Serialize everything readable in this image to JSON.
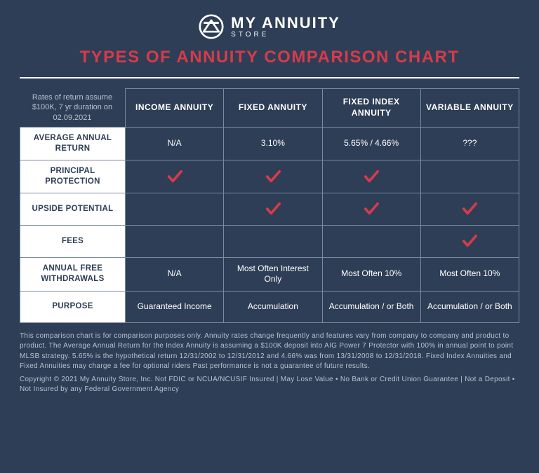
{
  "brand": {
    "name": "MY ANNUITY",
    "sub": "STORE"
  },
  "title": "TYPES OF ANNUITY COMPARISON CHART",
  "assumption_note": "Rates of return assume $100K, 7 yr duration on 02.09.2021",
  "colors": {
    "background": "#2e3e56",
    "title": "#d63b4a",
    "text": "#ffffff",
    "muted": "#b9c2d0",
    "grid": "#7b8aa0",
    "rowhead_bg": "#ffffff",
    "rowhead_text": "#2e3e56",
    "check": "#d63b4a"
  },
  "columns": [
    "INCOME ANNUITY",
    "FIXED ANNUITY",
    "FIXED INDEX ANNUITY",
    "VARIABLE ANNUITY"
  ],
  "rows": [
    {
      "label": "AVERAGE ANNUAL RETURN",
      "cells": [
        {
          "type": "text",
          "value": "N/A"
        },
        {
          "type": "text",
          "value": "3.10%"
        },
        {
          "type": "text",
          "value": "5.65% / 4.66%"
        },
        {
          "type": "text",
          "value": "???"
        }
      ]
    },
    {
      "label": "PRINCIPAL PROTECTION",
      "cells": [
        {
          "type": "check"
        },
        {
          "type": "check"
        },
        {
          "type": "check"
        },
        {
          "type": "empty"
        }
      ]
    },
    {
      "label": "UPSIDE POTENTIAL",
      "cells": [
        {
          "type": "empty"
        },
        {
          "type": "check"
        },
        {
          "type": "check"
        },
        {
          "type": "check"
        }
      ]
    },
    {
      "label": "FEES",
      "cells": [
        {
          "type": "empty"
        },
        {
          "type": "empty"
        },
        {
          "type": "empty"
        },
        {
          "type": "check"
        }
      ]
    },
    {
      "label": "ANNUAL FREE WITHDRAWALS",
      "cells": [
        {
          "type": "text",
          "value": "N/A"
        },
        {
          "type": "text",
          "value": "Most Often Interest Only"
        },
        {
          "type": "text",
          "value": "Most Often 10%"
        },
        {
          "type": "text",
          "value": "Most Often 10%"
        }
      ]
    },
    {
      "label": "PURPOSE",
      "cells": [
        {
          "type": "text",
          "value": "Guaranteed Income"
        },
        {
          "type": "text",
          "value": "Accumulation"
        },
        {
          "type": "text",
          "value": "Accumulation / or Both"
        },
        {
          "type": "text",
          "value": "Accumulation / or Both"
        }
      ]
    }
  ],
  "disclaimer": [
    "This comparison chart is for comparison purposes only. Annuity rates change frequently and features vary from company to company and product to product. The Average Annual Return for the Index Annuity is assuming a $100K deposit into AIG Power 7 Protector with 100% in annual point to point MLSB strategy. 5.65% is the hypothetical return 12/31/2002 to 12/31/2012 and 4.66% was from 13/31/2008 to 12/31/2018. Fixed Index Annuities and Fixed Annuities may charge a fee for optional riders Past performance is not a guarantee of future results.",
    "Copyright © 2021 My Annuity Store, Inc. Not FDIC or NCUA/NCUSIF Insured | May Lose Value • No Bank or Credit Union Guarantee | Not a Deposit • Not Insured by any Federal Government Agency"
  ]
}
